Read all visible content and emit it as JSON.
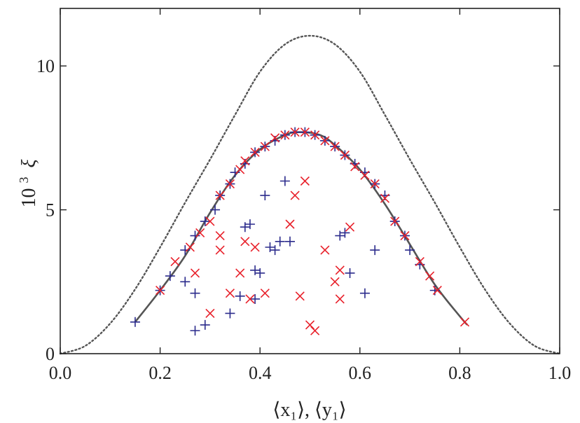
{
  "chart_data": {
    "type": "scatter",
    "title": "",
    "xlabel": "⟨x₁⟩, ⟨y₁⟩",
    "ylabel_base": "10",
    "ylabel_exp": "3",
    "ylabel_sym": "ξ",
    "xlim": [
      0.0,
      1.0
    ],
    "ylim": [
      0,
      12
    ],
    "x_ticks": [
      0.0,
      0.2,
      0.4,
      0.6,
      0.8,
      1.0
    ],
    "x_tick_labels": [
      "0.0",
      "0.2",
      "0.4",
      "0.6",
      "0.8",
      "1.0"
    ],
    "y_ticks": [
      0,
      5,
      10
    ],
    "y_tick_labels": [
      "0",
      "5",
      "10"
    ],
    "grid": false,
    "colors": {
      "plus": "#2b2b8c",
      "cross": "#e8202a",
      "solid": "#555555",
      "dotted": "#555555",
      "axes": "#222222"
    },
    "series": [
      {
        "kind": "dotted-curve",
        "x": [
          0.0,
          0.05,
          0.1,
          0.15,
          0.2,
          0.25,
          0.3,
          0.35,
          0.4,
          0.45,
          0.5,
          0.55,
          0.6,
          0.65,
          0.7,
          0.75,
          0.8,
          0.85,
          0.9,
          0.95,
          1.0
        ],
        "y": [
          0.0,
          0.27,
          1.05,
          2.24,
          3.7,
          5.25,
          6.75,
          8.3,
          9.8,
          10.75,
          11.05,
          10.75,
          9.8,
          8.3,
          6.75,
          5.25,
          3.7,
          2.24,
          1.05,
          0.27,
          0.0
        ]
      },
      {
        "kind": "solid-curve",
        "x": [
          0.15,
          0.2,
          0.25,
          0.3,
          0.35,
          0.4,
          0.45,
          0.48,
          0.52,
          0.55,
          0.6,
          0.65,
          0.7,
          0.75,
          0.8,
          0.815
        ],
        "y": [
          1.1,
          2.2,
          3.4,
          4.9,
          6.2,
          7.1,
          7.6,
          7.7,
          7.6,
          7.25,
          6.4,
          5.2,
          3.8,
          2.4,
          1.3,
          1.0
        ]
      },
      {
        "kind": "plus-markers",
        "x": [
          0.15,
          0.2,
          0.22,
          0.25,
          0.27,
          0.29,
          0.31,
          0.32,
          0.34,
          0.35,
          0.37,
          0.39,
          0.41,
          0.43,
          0.45,
          0.47,
          0.49,
          0.51,
          0.53,
          0.55,
          0.57,
          0.59,
          0.61,
          0.63,
          0.65,
          0.67,
          0.69,
          0.7,
          0.72,
          0.75,
          0.25,
          0.27,
          0.29,
          0.34,
          0.36,
          0.37,
          0.38,
          0.39,
          0.39,
          0.4,
          0.41,
          0.42,
          0.43,
          0.44,
          0.45,
          0.57,
          0.58,
          0.61,
          0.63,
          0.46,
          0.56,
          0.27
        ],
        "y": [
          1.1,
          2.2,
          2.7,
          3.6,
          4.1,
          4.6,
          5.0,
          5.5,
          5.9,
          6.3,
          6.6,
          7.0,
          7.2,
          7.4,
          7.6,
          7.7,
          7.7,
          7.6,
          7.4,
          7.2,
          6.9,
          6.6,
          6.3,
          5.9,
          5.5,
          4.6,
          4.1,
          3.6,
          3.1,
          2.2,
          2.5,
          0.8,
          1.0,
          1.4,
          2.0,
          4.4,
          4.5,
          1.9,
          2.9,
          2.8,
          5.5,
          3.7,
          3.6,
          3.9,
          6.0,
          4.2,
          2.8,
          2.1,
          3.6,
          3.9,
          4.1,
          2.1
        ]
      },
      {
        "kind": "cross-markers",
        "x": [
          0.2,
          0.23,
          0.26,
          0.28,
          0.3,
          0.32,
          0.34,
          0.36,
          0.37,
          0.39,
          0.41,
          0.43,
          0.45,
          0.47,
          0.49,
          0.51,
          0.53,
          0.55,
          0.57,
          0.59,
          0.61,
          0.63,
          0.65,
          0.67,
          0.69,
          0.72,
          0.74,
          0.755,
          0.81,
          0.27,
          0.3,
          0.32,
          0.32,
          0.34,
          0.36,
          0.37,
          0.38,
          0.39,
          0.41,
          0.46,
          0.47,
          0.49,
          0.5,
          0.51,
          0.53,
          0.55,
          0.56,
          0.56,
          0.58,
          0.48
        ],
        "y": [
          2.2,
          3.2,
          3.7,
          4.2,
          4.6,
          5.5,
          5.9,
          6.4,
          6.7,
          7.0,
          7.2,
          7.5,
          7.6,
          7.7,
          7.7,
          7.6,
          7.4,
          7.2,
          6.9,
          6.5,
          6.2,
          5.9,
          5.4,
          4.6,
          4.1,
          3.2,
          2.7,
          2.2,
          1.1,
          2.8,
          1.4,
          4.1,
          3.6,
          2.1,
          2.8,
          3.9,
          1.9,
          3.7,
          2.1,
          4.5,
          5.5,
          6.0,
          1.0,
          0.8,
          3.6,
          2.5,
          2.9,
          1.9,
          4.4,
          2.0
        ]
      }
    ]
  }
}
